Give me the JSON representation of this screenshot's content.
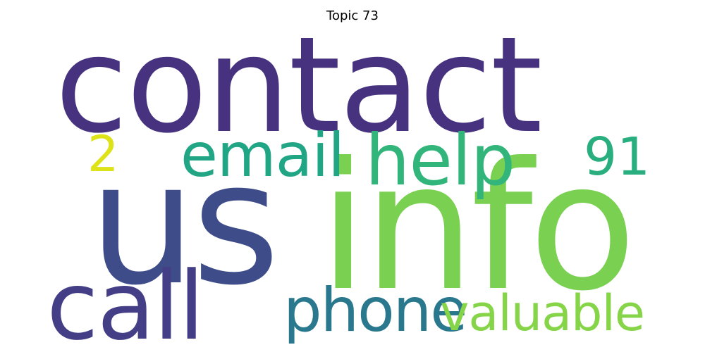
{
  "title": "Topic 73",
  "words": [
    {
      "key": "contact",
      "text": "contact",
      "color": "#46327e"
    },
    {
      "key": "us",
      "text": "us",
      "color": "#3e4c8a"
    },
    {
      "key": "info",
      "text": "info",
      "color": "#7ad151"
    },
    {
      "key": "call",
      "text": "call",
      "color": "#433e85"
    },
    {
      "key": "email",
      "text": "email",
      "color": "#21a685"
    },
    {
      "key": "help",
      "text": "help",
      "color": "#31b57b"
    },
    {
      "key": "phone",
      "text": "phone",
      "color": "#2a788e"
    },
    {
      "key": "valuable",
      "text": "valuable",
      "color": "#86d549"
    },
    {
      "key": "n91",
      "text": "91",
      "color": "#29af7f"
    },
    {
      "key": "n2",
      "text": "2",
      "color": "#dde318"
    }
  ]
}
